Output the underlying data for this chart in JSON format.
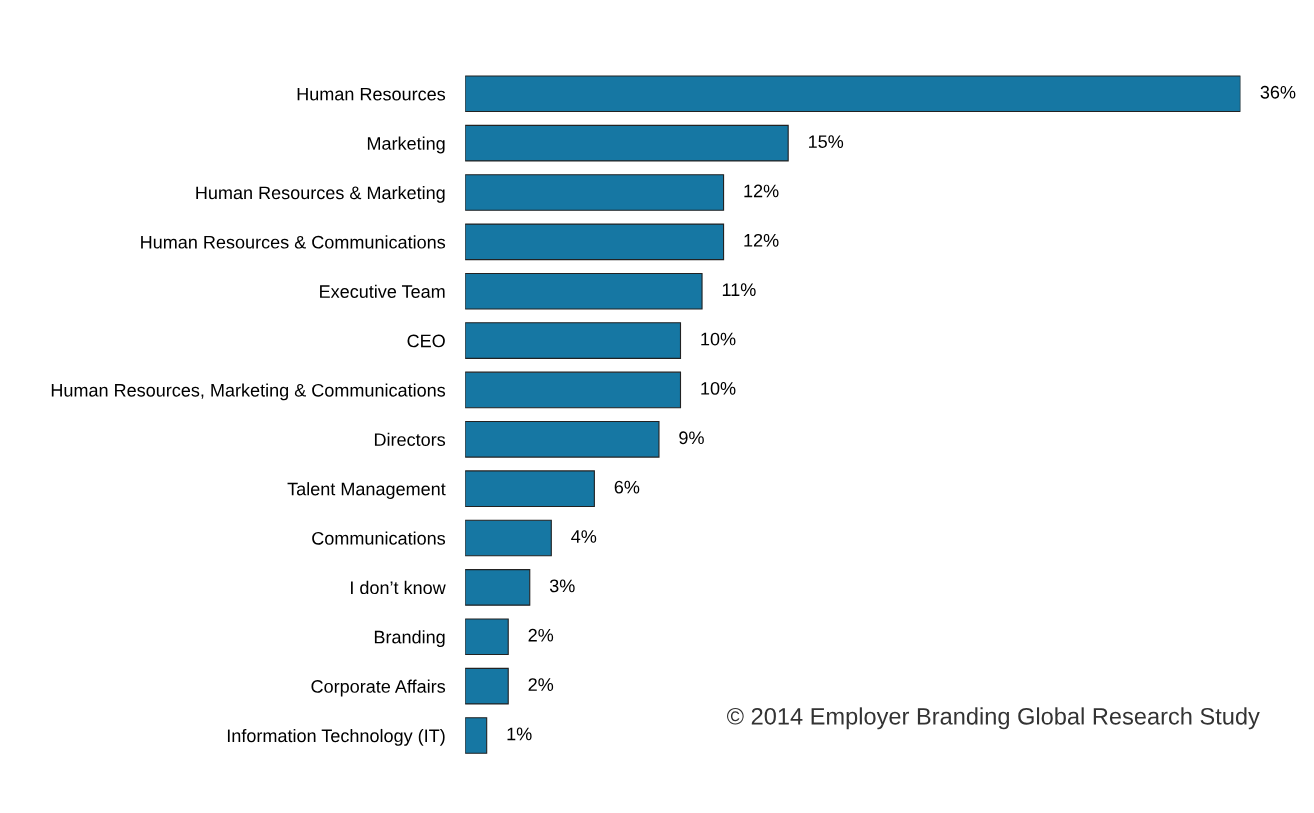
{
  "chart_data": {
    "type": "bar",
    "orientation": "horizontal",
    "categories": [
      "Human Resources",
      "Marketing",
      "Human Resources & Marketing",
      "Human Resources & Communications",
      "Executive Team",
      "CEO",
      "Human Resources, Marketing & Communications",
      "Directors",
      "Talent Management",
      "Communications",
      "I don’t know",
      "Branding",
      "Corporate Affairs",
      "Information Technology (IT)"
    ],
    "values": [
      36,
      15,
      12,
      12,
      11,
      10,
      10,
      9,
      6,
      4,
      3,
      2,
      2,
      1
    ],
    "value_labels": [
      "36%",
      "15%",
      "12%",
      "12%",
      "11%",
      "10%",
      "10%",
      "9%",
      "6%",
      "4%",
      "3%",
      "2%",
      "2%",
      "1%"
    ],
    "color": "#1677a3",
    "annotations": [
      "© 2014 Employer Branding Global Research Study"
    ]
  }
}
